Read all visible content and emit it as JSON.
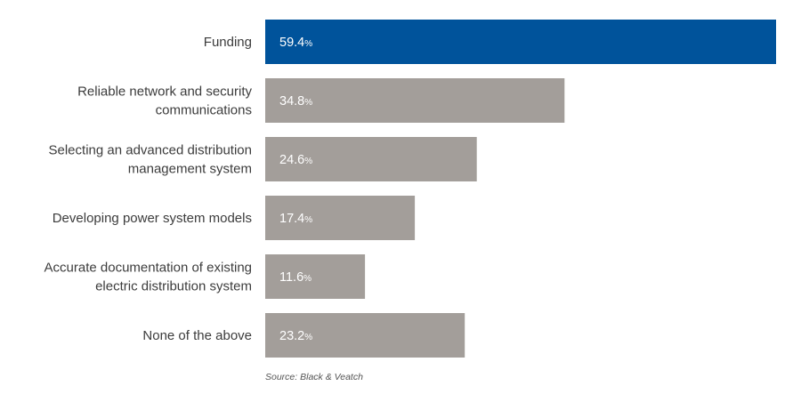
{
  "chart_data": {
    "type": "bar",
    "orientation": "horizontal",
    "categories": [
      [
        "Funding"
      ],
      [
        "Reliable network and security",
        "communications"
      ],
      [
        "Selecting an advanced distribution",
        "management system"
      ],
      [
        "Developing power system models"
      ],
      [
        "Accurate documentation of existing",
        "electric distribution system"
      ],
      [
        "None of the above"
      ]
    ],
    "values": [
      59.4,
      34.8,
      24.6,
      17.4,
      11.6,
      23.2
    ],
    "value_labels": [
      "59.4",
      "34.8",
      "24.6",
      "17.4",
      "11.6",
      "23.2"
    ],
    "unit": "%",
    "xlim": [
      0,
      60
    ],
    "grid": false,
    "legend": "none",
    "colors": {
      "highlight": "#00539b",
      "default": "#a39e9a"
    },
    "highlight_index": 0,
    "source": "Source: Black & Veatch"
  }
}
